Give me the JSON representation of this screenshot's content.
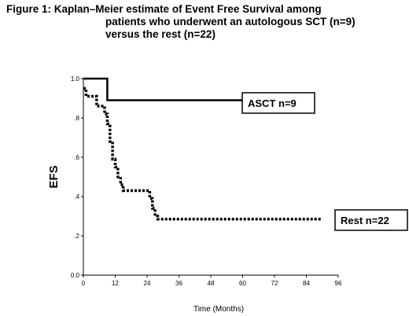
{
  "title": {
    "line1": "Figure 1: Kaplan–Meier estimate of Event Free Survival among",
    "line2": "patients who underwent an autologous SCT (n=9)",
    "line3": "versus the rest (n=22)"
  },
  "chart_data": {
    "type": "line",
    "title": "Figure 1: Kaplan–Meier estimate of Event Free Survival among patients who underwent an autologous SCT (n=9) versus the rest (n=22)",
    "xlabel": "Time (Months)",
    "ylabel": "EFS",
    "xlim": [
      0,
      96
    ],
    "ylim": [
      0,
      1.0
    ],
    "x_ticks": [
      "0",
      "12",
      "24",
      "36",
      "48",
      "60",
      "72",
      "84",
      "96"
    ],
    "y_ticks": [
      "0.0",
      ".2",
      ".4",
      ".6",
      ".8",
      "1.0"
    ],
    "grid": false,
    "series": [
      {
        "name": "ASCT n=9",
        "style": "solid",
        "step_points": [
          [
            0,
            1.0
          ],
          [
            9,
            1.0
          ],
          [
            9,
            0.89
          ],
          [
            60,
            0.89
          ]
        ]
      },
      {
        "name": "Rest n=22",
        "style": "dotted",
        "step_points": [
          [
            0,
            0.95
          ],
          [
            1,
            0.95
          ],
          [
            1,
            0.91
          ],
          [
            5,
            0.91
          ],
          [
            5,
            0.86
          ],
          [
            8,
            0.86
          ],
          [
            8,
            0.82
          ],
          [
            9,
            0.82
          ],
          [
            9,
            0.77
          ],
          [
            10,
            0.77
          ],
          [
            10,
            0.68
          ],
          [
            11,
            0.68
          ],
          [
            11,
            0.59
          ],
          [
            12,
            0.59
          ],
          [
            12,
            0.55
          ],
          [
            13,
            0.55
          ],
          [
            13,
            0.5
          ],
          [
            14,
            0.5
          ],
          [
            14,
            0.46
          ],
          [
            15,
            0.46
          ],
          [
            15,
            0.43
          ],
          [
            25,
            0.43
          ],
          [
            25,
            0.39
          ],
          [
            26,
            0.39
          ],
          [
            26,
            0.34
          ],
          [
            27,
            0.34
          ],
          [
            27,
            0.3
          ],
          [
            28,
            0.3
          ],
          [
            28,
            0.285
          ],
          [
            90,
            0.285
          ]
        ]
      }
    ],
    "legend_boxes": [
      "ASCT n=9",
      "Rest n=22"
    ]
  }
}
